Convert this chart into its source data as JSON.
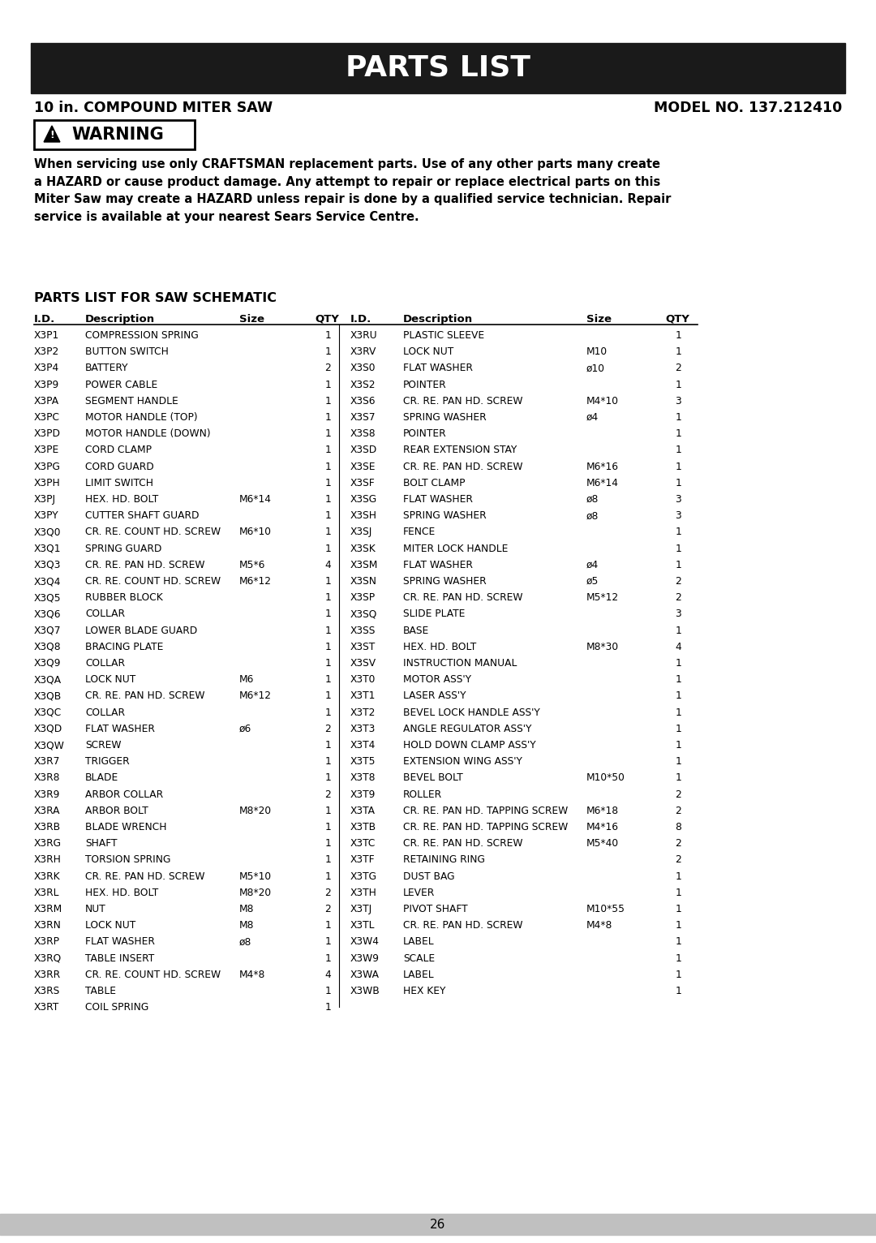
{
  "title": "PARTS LIST",
  "subtitle_left": "10 in. COMPOUND MITER SAW",
  "subtitle_right": "MODEL NO. 137.212410",
  "warning_text": "When servicing use only CRAFTSMAN replacement parts. Use of any other parts many create\na HAZARD or cause product damage. Any attempt to repair or replace electrical parts on this\nMiter Saw may create a HAZARD unless repair is done by a qualified service technician. Repair\nservice is available at your nearest Sears Service Centre.",
  "section_title": "PARTS LIST FOR SAW SCHEMATIC",
  "parts_left": [
    [
      "X3P1",
      "COMPRESSION SPRING",
      "",
      "1"
    ],
    [
      "X3P2",
      "BUTTON SWITCH",
      "",
      "1"
    ],
    [
      "X3P4",
      "BATTERY",
      "",
      "2"
    ],
    [
      "X3P9",
      "POWER CABLE",
      "",
      "1"
    ],
    [
      "X3PA",
      "SEGMENT HANDLE",
      "",
      "1"
    ],
    [
      "X3PC",
      "MOTOR HANDLE (TOP)",
      "",
      "1"
    ],
    [
      "X3PD",
      "MOTOR HANDLE (DOWN)",
      "",
      "1"
    ],
    [
      "X3PE",
      "CORD CLAMP",
      "",
      "1"
    ],
    [
      "X3PG",
      "CORD GUARD",
      "",
      "1"
    ],
    [
      "X3PH",
      "LIMIT SWITCH",
      "",
      "1"
    ],
    [
      "X3PJ",
      "HEX. HD. BOLT",
      "M6*14",
      "1"
    ],
    [
      "X3PY",
      "CUTTER SHAFT GUARD",
      "",
      "1"
    ],
    [
      "X3Q0",
      "CR. RE. COUNT HD. SCREW",
      "M6*10",
      "1"
    ],
    [
      "X3Q1",
      "SPRING GUARD",
      "",
      "1"
    ],
    [
      "X3Q3",
      "CR. RE. PAN HD. SCREW",
      "M5*6",
      "4"
    ],
    [
      "X3Q4",
      "CR. RE. COUNT HD. SCREW",
      "M6*12",
      "1"
    ],
    [
      "X3Q5",
      "RUBBER BLOCK",
      "",
      "1"
    ],
    [
      "X3Q6",
      "COLLAR",
      "",
      "1"
    ],
    [
      "X3Q7",
      "LOWER BLADE GUARD",
      "",
      "1"
    ],
    [
      "X3Q8",
      "BRACING PLATE",
      "",
      "1"
    ],
    [
      "X3Q9",
      "COLLAR",
      "",
      "1"
    ],
    [
      "X3QA",
      "LOCK NUT",
      "M6",
      "1"
    ],
    [
      "X3QB",
      "CR. RE. PAN HD. SCREW",
      "M6*12",
      "1"
    ],
    [
      "X3QC",
      "COLLAR",
      "",
      "1"
    ],
    [
      "X3QD",
      "FLAT WASHER",
      "ø6",
      "2"
    ],
    [
      "X3QW",
      "SCREW",
      "",
      "1"
    ],
    [
      "X3R7",
      "TRIGGER",
      "",
      "1"
    ],
    [
      "X3R8",
      "BLADE",
      "",
      "1"
    ],
    [
      "X3R9",
      "ARBOR COLLAR",
      "",
      "2"
    ],
    [
      "X3RA",
      "ARBOR BOLT",
      "M8*20",
      "1"
    ],
    [
      "X3RB",
      "BLADE WRENCH",
      "",
      "1"
    ],
    [
      "X3RG",
      "SHAFT",
      "",
      "1"
    ],
    [
      "X3RH",
      "TORSION SPRING",
      "",
      "1"
    ],
    [
      "X3RK",
      "CR. RE. PAN HD. SCREW",
      "M5*10",
      "1"
    ],
    [
      "X3RL",
      "HEX. HD. BOLT",
      "M8*20",
      "2"
    ],
    [
      "X3RM",
      "NUT",
      "M8",
      "2"
    ],
    [
      "X3RN",
      "LOCK NUT",
      "M8",
      "1"
    ],
    [
      "X3RP",
      "FLAT WASHER",
      "ø8",
      "1"
    ],
    [
      "X3RQ",
      "TABLE INSERT",
      "",
      "1"
    ],
    [
      "X3RR",
      "CR. RE. COUNT HD. SCREW",
      "M4*8",
      "4"
    ],
    [
      "X3RS",
      "TABLE",
      "",
      "1"
    ],
    [
      "X3RT",
      "COIL SPRING",
      "",
      "1"
    ]
  ],
  "parts_right": [
    [
      "X3RU",
      "PLASTIC SLEEVE",
      "",
      "1"
    ],
    [
      "X3RV",
      "LOCK NUT",
      "M10",
      "1"
    ],
    [
      "X3S0",
      "FLAT WASHER",
      "ø10",
      "2"
    ],
    [
      "X3S2",
      "POINTER",
      "",
      "1"
    ],
    [
      "X3S6",
      "CR. RE. PAN HD. SCREW",
      "M4*10",
      "3"
    ],
    [
      "X3S7",
      "SPRING WASHER",
      "ø4",
      "1"
    ],
    [
      "X3S8",
      "POINTER",
      "",
      "1"
    ],
    [
      "X3SD",
      "REAR EXTENSION STAY",
      "",
      "1"
    ],
    [
      "X3SE",
      "CR. RE. PAN HD. SCREW",
      "M6*16",
      "1"
    ],
    [
      "X3SF",
      "BOLT CLAMP",
      "M6*14",
      "1"
    ],
    [
      "X3SG",
      "FLAT WASHER",
      "ø8",
      "3"
    ],
    [
      "X3SH",
      "SPRING WASHER",
      "ø8",
      "3"
    ],
    [
      "X3SJ",
      "FENCE",
      "",
      "1"
    ],
    [
      "X3SK",
      "MITER LOCK HANDLE",
      "",
      "1"
    ],
    [
      "X3SM",
      "FLAT WASHER",
      "ø4",
      "1"
    ],
    [
      "X3SN",
      "SPRING WASHER",
      "ø5",
      "2"
    ],
    [
      "X3SP",
      "CR. RE. PAN HD. SCREW",
      "M5*12",
      "2"
    ],
    [
      "X3SQ",
      "SLIDE PLATE",
      "",
      "3"
    ],
    [
      "X3SS",
      "BASE",
      "",
      "1"
    ],
    [
      "X3ST",
      "HEX. HD. BOLT",
      "M8*30",
      "4"
    ],
    [
      "X3SV",
      "INSTRUCTION MANUAL",
      "",
      "1"
    ],
    [
      "X3T0",
      "MOTOR ASS'Y",
      "",
      "1"
    ],
    [
      "X3T1",
      "LASER ASS'Y",
      "",
      "1"
    ],
    [
      "X3T2",
      "BEVEL LOCK HANDLE ASS'Y",
      "",
      "1"
    ],
    [
      "X3T3",
      "ANGLE REGULATOR ASS'Y",
      "",
      "1"
    ],
    [
      "X3T4",
      "HOLD DOWN CLAMP ASS'Y",
      "",
      "1"
    ],
    [
      "X3T5",
      "EXTENSION WING ASS'Y",
      "",
      "1"
    ],
    [
      "X3T8",
      "BEVEL BOLT",
      "M10*50",
      "1"
    ],
    [
      "X3T9",
      "ROLLER",
      "",
      "2"
    ],
    [
      "X3TA",
      "CR. RE. PAN HD. TAPPING SCREW",
      "M6*18",
      "2"
    ],
    [
      "X3TB",
      "CR. RE. PAN HD. TAPPING SCREW",
      "M4*16",
      "8"
    ],
    [
      "X3TC",
      "CR. RE. PAN HD. SCREW",
      "M5*40",
      "2"
    ],
    [
      "X3TF",
      "RETAINING RING",
      "",
      "2"
    ],
    [
      "X3TG",
      "DUST BAG",
      "",
      "1"
    ],
    [
      "X3TH",
      "LEVER",
      "",
      "1"
    ],
    [
      "X3TJ",
      "PIVOT SHAFT",
      "M10*55",
      "1"
    ],
    [
      "X3TL",
      "CR. RE. PAN HD. SCREW",
      "M4*8",
      "1"
    ],
    [
      "X3W4",
      "LABEL",
      "",
      "1"
    ],
    [
      "X3W9",
      "SCALE",
      "",
      "1"
    ],
    [
      "X3WA",
      "LABEL",
      "",
      "1"
    ],
    [
      "X3WB",
      "HEX KEY",
      "",
      "1"
    ]
  ],
  "page_number": "26",
  "bg_color": "#ffffff",
  "header_bg": "#1a1a1a",
  "header_fg": "#ffffff"
}
